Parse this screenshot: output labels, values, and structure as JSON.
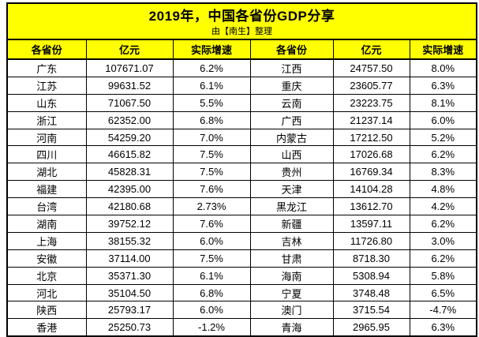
{
  "header": {
    "title": "2019年，中国各省份GDP分享",
    "subtitle": "由【南生】整理"
  },
  "colors": {
    "header_bg": "#ffff00",
    "border": "#000000",
    "row_bg": "#ffffff",
    "text": "#000000"
  },
  "chart_data": {
    "type": "table",
    "title": "2019年，中国各省份GDP分享",
    "subtitle": "由【南生】整理",
    "unit_note": "亿元 = 100 million yuan; 实际增速 = real growth rate",
    "columns": [
      "各省份",
      "亿元",
      "实际增速",
      "各省份",
      "亿元",
      "实际增速"
    ],
    "cell_names": [
      "province-cell",
      "gdp-value-cell",
      "growth-rate-cell",
      "province-cell",
      "gdp-value-cell",
      "growth-rate-cell"
    ],
    "rows": [
      [
        "广东",
        "107671.07",
        "6.2%",
        "江西",
        "24757.50",
        "8.0%"
      ],
      [
        "江苏",
        "99631.52",
        "6.1%",
        "重庆",
        "23605.77",
        "6.3%"
      ],
      [
        "山东",
        "71067.50",
        "5.5%",
        "云南",
        "23223.75",
        "8.1%"
      ],
      [
        "浙江",
        "62352.00",
        "6.8%",
        "广西",
        "21237.14",
        "6.0%"
      ],
      [
        "河南",
        "54259.20",
        "7.0%",
        "内蒙古",
        "17212.50",
        "5.2%"
      ],
      [
        "四川",
        "46615.82",
        "7.5%",
        "山西",
        "17026.68",
        "6.2%"
      ],
      [
        "湖北",
        "45828.31",
        "7.5%",
        "贵州",
        "16769.34",
        "8.3%"
      ],
      [
        "福建",
        "42395.00",
        "7.6%",
        "天津",
        "14104.28",
        "4.8%"
      ],
      [
        "台湾",
        "42180.68",
        "2.73%",
        "黑龙江",
        "13612.70",
        "4.2%"
      ],
      [
        "湖南",
        "39752.12",
        "7.6%",
        "新疆",
        "13597.11",
        "6.2%"
      ],
      [
        "上海",
        "38155.32",
        "6.0%",
        "吉林",
        "11726.80",
        "3.0%"
      ],
      [
        "安徽",
        "37114.00",
        "7.5%",
        "甘肃",
        "8718.30",
        "6.2%"
      ],
      [
        "北京",
        "35371.30",
        "6.1%",
        "海南",
        "5308.94",
        "5.8%"
      ],
      [
        "河北",
        "35104.50",
        "6.8%",
        "宁夏",
        "3748.48",
        "6.5%"
      ],
      [
        "陕西",
        "25793.17",
        "6.0%",
        "澳门",
        "3715.54",
        "-4.7%"
      ],
      [
        "香港",
        "25250.73",
        "-1.2%",
        "青海",
        "2965.95",
        "6.3%"
      ]
    ]
  }
}
